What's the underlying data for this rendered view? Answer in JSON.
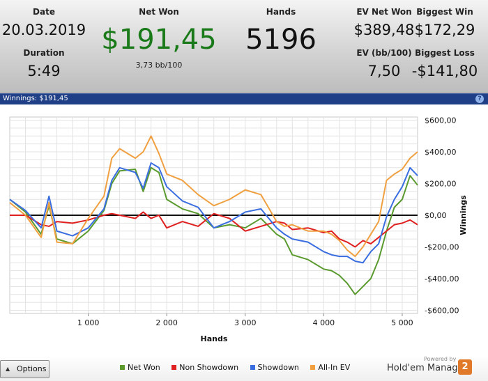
{
  "stats": {
    "date_label": "Date",
    "date_value": "20.03.2019",
    "duration_label": "Duration",
    "duration_value": "5:49",
    "net_won_label": "Net Won",
    "net_won_value": "$191,45",
    "net_won_bb": "3,73 bb/100",
    "hands_label": "Hands",
    "hands_value": "5196",
    "ev_net_won_label": "EV Net Won",
    "ev_net_won_value": "$389,48",
    "ev_bb_label": "EV (bb/100)",
    "ev_bb_value": "7,50",
    "biggest_win_label": "Biggest Win",
    "biggest_win_value": "$172,29",
    "biggest_loss_label": "Biggest Loss",
    "biggest_loss_value": "-$141,80"
  },
  "panel": {
    "title": "Winnings: $191,45",
    "help_glyph": "?"
  },
  "options": {
    "label": "Options"
  },
  "logo": {
    "powered": "Powered by",
    "name": "Hold'em Manager",
    "badge": "2"
  },
  "colors": {
    "net_won": "#5a9a2e",
    "non_showdown": "#e02020",
    "showdown": "#3a6ee0",
    "all_in_ev": "#f0a040"
  },
  "chart_data": {
    "type": "line",
    "xlabel": "Hands",
    "ylabel": "Winnings",
    "xlim": [
      0,
      5196
    ],
    "ylim": [
      -620,
      620
    ],
    "x_ticks": [
      1000,
      2000,
      3000,
      4000,
      5000
    ],
    "x_tick_labels": [
      "1 000",
      "2 000",
      "3 000",
      "4 000",
      "5 000"
    ],
    "y_ticks": [
      600,
      400,
      200,
      0,
      -200,
      -400,
      -600
    ],
    "y_tick_labels": [
      "$600,00",
      "$400,00",
      "$200,00",
      "$0,00",
      "-$200,00",
      "-$400,00",
      "-$600,00"
    ],
    "grid": true,
    "legend_position": "bottom",
    "x": [
      0,
      200,
      400,
      500,
      600,
      800,
      1000,
      1200,
      1300,
      1400,
      1600,
      1700,
      1800,
      1900,
      2000,
      2200,
      2400,
      2600,
      2800,
      3000,
      3200,
      3400,
      3500,
      3600,
      3800,
      4000,
      4100,
      4200,
      4300,
      4400,
      4500,
      4600,
      4700,
      4800,
      4900,
      5000,
      5100,
      5196
    ],
    "series": [
      {
        "name": "Net Won",
        "color": "#5a9a2e",
        "values": [
          100,
          20,
          -120,
          60,
          -150,
          -180,
          -100,
          30,
          200,
          280,
          290,
          150,
          300,
          270,
          100,
          40,
          10,
          -80,
          -60,
          -80,
          -20,
          -120,
          -150,
          -250,
          -280,
          -340,
          -350,
          -380,
          -430,
          -500,
          -450,
          -400,
          -280,
          -100,
          50,
          100,
          250,
          190
        ]
      },
      {
        "name": "Non Showdown",
        "color": "#e02020",
        "values": [
          0,
          0,
          -60,
          -70,
          -40,
          -50,
          -30,
          0,
          10,
          0,
          -20,
          20,
          -20,
          0,
          -80,
          -40,
          -70,
          10,
          -20,
          -100,
          -70,
          -40,
          -50,
          -90,
          -80,
          -110,
          -100,
          -150,
          -170,
          -200,
          -160,
          -180,
          -140,
          -100,
          -60,
          -50,
          -30,
          -60
        ]
      },
      {
        "name": "Showdown",
        "color": "#3a6ee0",
        "values": [
          100,
          30,
          -80,
          120,
          -100,
          -130,
          -80,
          40,
          220,
          300,
          270,
          170,
          330,
          300,
          180,
          90,
          50,
          -80,
          -40,
          20,
          40,
          -80,
          -120,
          -150,
          -170,
          -230,
          -250,
          -260,
          -260,
          -290,
          -300,
          -230,
          -180,
          -10,
          100,
          180,
          300,
          250
        ]
      },
      {
        "name": "All-In EV",
        "color": "#f0a040",
        "values": [
          80,
          0,
          -140,
          80,
          -170,
          -180,
          -20,
          120,
          360,
          420,
          360,
          400,
          500,
          390,
          260,
          220,
          130,
          60,
          100,
          160,
          130,
          -40,
          -70,
          -60,
          -100,
          -100,
          -120,
          -160,
          -220,
          -260,
          -200,
          -120,
          -40,
          220,
          260,
          290,
          360,
          400
        ]
      }
    ]
  }
}
